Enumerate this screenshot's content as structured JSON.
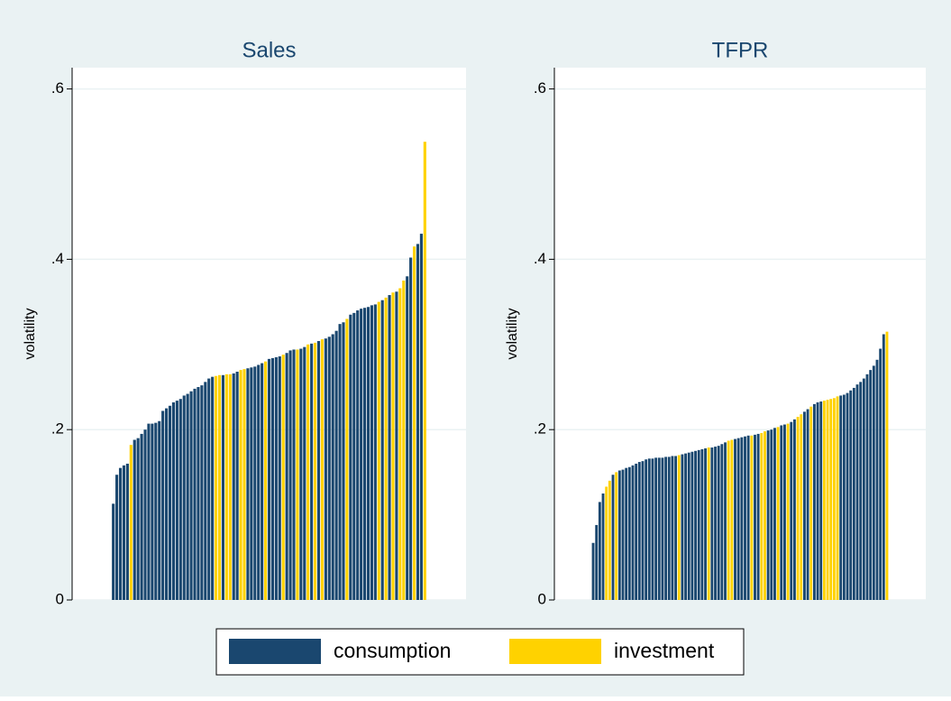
{
  "chart_data": [
    {
      "type": "bar",
      "title": "Sales",
      "y_label": "volatility",
      "ylim": [
        0,
        0.625
      ],
      "yticks": [
        0,
        {
          "value": 0.2,
          "label": ".2"
        },
        {
          "value": 0.4,
          "label": ".4"
        },
        {
          "value": 0.6,
          "label": ".6"
        }
      ],
      "grid": true,
      "series": [
        {
          "color": "#1a476f",
          "values": [
            0.113,
            0.147,
            0.155,
            0.158,
            0.16,
            null,
            0.188,
            0.19,
            0.195,
            0.2,
            0.207,
            0.207,
            0.208,
            0.21,
            0.222,
            0.225,
            0.228,
            0.232,
            0.234,
            0.236,
            0.24,
            0.242,
            0.245,
            0.248,
            0.25,
            0.252,
            0.256,
            0.26,
            0.262,
            null,
            null,
            0.264,
            null,
            null,
            0.266,
            0.268,
            null,
            null,
            0.272,
            0.273,
            0.274,
            0.276,
            0.278,
            null,
            0.283,
            0.284,
            0.285,
            0.286,
            null,
            0.29,
            0.293,
            0.294,
            null,
            0.295,
            0.297,
            null,
            0.301,
            null,
            0.304,
            null,
            0.307,
            0.309,
            0.312,
            0.316,
            0.324,
            0.326,
            null,
            0.335,
            0.337,
            0.34,
            0.342,
            0.343,
            0.344,
            0.346,
            0.347,
            null,
            0.352,
            null,
            0.358,
            null,
            0.362,
            null,
            null,
            0.38,
            0.402,
            null,
            0.418,
            0.43,
            null
          ]
        },
        {
          "color": "#ffd200",
          "values": [
            null,
            null,
            null,
            null,
            null,
            0.182,
            null,
            null,
            null,
            null,
            null,
            null,
            null,
            null,
            null,
            null,
            null,
            null,
            null,
            null,
            null,
            null,
            null,
            null,
            null,
            null,
            null,
            null,
            null,
            0.263,
            0.264,
            null,
            0.265,
            0.265,
            null,
            null,
            0.27,
            0.271,
            null,
            null,
            null,
            null,
            null,
            0.28,
            null,
            null,
            null,
            null,
            0.288,
            null,
            null,
            null,
            0.294,
            null,
            null,
            0.3,
            null,
            0.302,
            null,
            0.306,
            null,
            null,
            null,
            null,
            null,
            null,
            0.33,
            null,
            null,
            null,
            null,
            null,
            null,
            null,
            null,
            0.35,
            null,
            0.355,
            null,
            0.361,
            null,
            0.366,
            0.375,
            null,
            null,
            0.415,
            null,
            null,
            0.538
          ]
        }
      ]
    },
    {
      "type": "bar",
      "title": "TFPR",
      "y_label": "volatility",
      "ylim": [
        0,
        0.625
      ],
      "yticks": [
        0,
        {
          "value": 0.2,
          "label": ".2"
        },
        {
          "value": 0.4,
          "label": ".4"
        },
        {
          "value": 0.6,
          "label": ".6"
        }
      ],
      "grid": true,
      "series": [
        {
          "color": "#1a476f",
          "values": [
            0.067,
            0.088,
            0.115,
            0.125,
            null,
            null,
            0.147,
            null,
            0.152,
            0.153,
            0.155,
            0.156,
            0.158,
            0.16,
            0.162,
            0.163,
            0.165,
            0.166,
            0.166,
            0.167,
            0.167,
            0.167,
            0.168,
            0.168,
            0.169,
            0.169,
            null,
            0.171,
            0.172,
            0.173,
            0.174,
            0.175,
            0.176,
            0.177,
            0.178,
            null,
            0.179,
            0.18,
            0.181,
            0.183,
            0.185,
            null,
            null,
            0.189,
            0.19,
            0.191,
            0.192,
            0.193,
            null,
            0.194,
            0.195,
            null,
            null,
            0.199,
            0.2,
            0.202,
            null,
            0.205,
            0.206,
            null,
            0.209,
            0.212,
            null,
            null,
            0.221,
            0.224,
            null,
            0.23,
            0.232,
            0.233,
            null,
            null,
            null,
            null,
            null,
            0.24,
            0.241,
            0.243,
            0.246,
            0.249,
            0.253,
            0.256,
            0.26,
            0.265,
            0.27,
            0.275,
            0.282,
            0.295,
            0.312,
            null
          ]
        },
        {
          "color": "#ffd200",
          "values": [
            null,
            null,
            null,
            null,
            0.133,
            0.14,
            null,
            0.15,
            null,
            null,
            null,
            null,
            null,
            null,
            null,
            null,
            null,
            null,
            null,
            null,
            null,
            null,
            null,
            null,
            null,
            null,
            0.17,
            null,
            null,
            null,
            null,
            null,
            null,
            null,
            null,
            0.179,
            null,
            null,
            null,
            null,
            null,
            0.187,
            0.188,
            null,
            null,
            null,
            null,
            null,
            0.193,
            null,
            null,
            0.196,
            0.198,
            null,
            null,
            null,
            0.203,
            null,
            null,
            0.207,
            null,
            null,
            0.215,
            0.218,
            null,
            null,
            0.227,
            null,
            null,
            null,
            0.234,
            0.235,
            0.236,
            0.237,
            0.239,
            null,
            null,
            null,
            null,
            null,
            null,
            null,
            null,
            null,
            null,
            null,
            null,
            null,
            null,
            0.315
          ]
        }
      ]
    }
  ],
  "legend": {
    "position": "bottom",
    "items": [
      {
        "name": "consumption",
        "color": "#1a476f"
      },
      {
        "name": "investment",
        "color": "#ffd200"
      }
    ]
  }
}
